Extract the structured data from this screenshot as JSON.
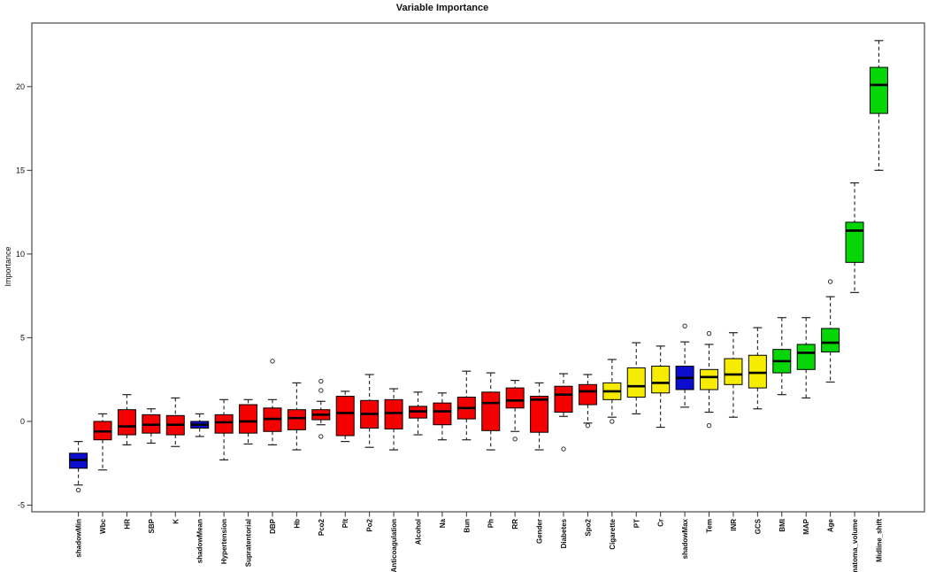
{
  "chart_data": {
    "type": "boxplot",
    "title": "Variable Importance",
    "ylabel": "Importance",
    "xlabel": "",
    "ylim": [
      -5.4,
      23.8
    ],
    "yticks": [
      -5,
      0,
      5,
      10,
      15,
      20
    ],
    "grid": false,
    "legend_position": "none",
    "x_tick_label_rotation": 90,
    "status_colors": {
      "confirmed": "#06d506",
      "tentative": "#f6ec00",
      "rejected": "#f40000",
      "shadow": "#0d0dcf"
    },
    "series": [
      {
        "label": "shadowMin",
        "status": "shadow",
        "whisker_low": -3.8,
        "q1": -2.8,
        "median": -2.3,
        "q3": -1.9,
        "whisker_high": -1.2,
        "outliers": [
          -4.1
        ]
      },
      {
        "label": "Wbc",
        "status": "rejected",
        "whisker_low": -2.9,
        "q1": -1.1,
        "median": -0.6,
        "q3": 0.0,
        "whisker_high": 0.45,
        "outliers": []
      },
      {
        "label": "HR",
        "status": "rejected",
        "whisker_low": -1.4,
        "q1": -0.8,
        "median": -0.3,
        "q3": 0.7,
        "whisker_high": 1.6,
        "outliers": []
      },
      {
        "label": "SBP",
        "status": "rejected",
        "whisker_low": -1.3,
        "q1": -0.7,
        "median": -0.2,
        "q3": 0.4,
        "whisker_high": 0.75,
        "outliers": []
      },
      {
        "label": "K",
        "status": "rejected",
        "whisker_low": -1.5,
        "q1": -0.8,
        "median": -0.2,
        "q3": 0.35,
        "whisker_high": 1.4,
        "outliers": []
      },
      {
        "label": "shadowMean",
        "status": "shadow",
        "whisker_low": -0.9,
        "q1": -0.4,
        "median": -0.2,
        "q3": 0.0,
        "whisker_high": 0.45,
        "outliers": []
      },
      {
        "label": "Hypertension",
        "status": "rejected",
        "whisker_low": -2.3,
        "q1": -0.7,
        "median": -0.05,
        "q3": 0.4,
        "whisker_high": 1.3,
        "outliers": []
      },
      {
        "label": "Supratentorial",
        "status": "rejected",
        "whisker_low": -1.35,
        "q1": -0.7,
        "median": 0.0,
        "q3": 1.0,
        "whisker_high": 1.3,
        "outliers": []
      },
      {
        "label": "DBP",
        "status": "rejected",
        "whisker_low": -1.4,
        "q1": -0.6,
        "median": 0.15,
        "q3": 0.8,
        "whisker_high": 1.3,
        "outliers": [
          3.6
        ]
      },
      {
        "label": "Hb",
        "status": "rejected",
        "whisker_low": -1.7,
        "q1": -0.5,
        "median": 0.2,
        "q3": 0.7,
        "whisker_high": 2.3,
        "outliers": []
      },
      {
        "label": "Pco2",
        "status": "rejected",
        "whisker_low": -0.2,
        "q1": 0.1,
        "median": 0.4,
        "q3": 0.7,
        "whisker_high": 1.2,
        "outliers": [
          2.4,
          1.85,
          -0.9
        ]
      },
      {
        "label": "Plt",
        "status": "rejected",
        "whisker_low": -1.2,
        "q1": -0.85,
        "median": 0.5,
        "q3": 1.5,
        "whisker_high": 1.8,
        "outliers": []
      },
      {
        "label": "Po2",
        "status": "rejected",
        "whisker_low": -1.55,
        "q1": -0.4,
        "median": 0.45,
        "q3": 1.25,
        "whisker_high": 2.8,
        "outliers": []
      },
      {
        "label": "Anticoagulation",
        "status": "rejected",
        "whisker_low": -1.7,
        "q1": -0.45,
        "median": 0.5,
        "q3": 1.3,
        "whisker_high": 1.95,
        "outliers": []
      },
      {
        "label": "Alcohol",
        "status": "rejected",
        "whisker_low": -0.8,
        "q1": 0.2,
        "median": 0.6,
        "q3": 0.9,
        "whisker_high": 1.75,
        "outliers": []
      },
      {
        "label": "Na",
        "status": "rejected",
        "whisker_low": -1.1,
        "q1": -0.2,
        "median": 0.6,
        "q3": 1.1,
        "whisker_high": 1.7,
        "outliers": []
      },
      {
        "label": "Bun",
        "status": "rejected",
        "whisker_low": -1.1,
        "q1": 0.15,
        "median": 0.8,
        "q3": 1.45,
        "whisker_high": 3.0,
        "outliers": []
      },
      {
        "label": "Ph",
        "status": "rejected",
        "whisker_low": -1.7,
        "q1": -0.55,
        "median": 1.1,
        "q3": 1.75,
        "whisker_high": 2.9,
        "outliers": []
      },
      {
        "label": "RR",
        "status": "rejected",
        "whisker_low": -0.6,
        "q1": 0.8,
        "median": 1.25,
        "q3": 2.0,
        "whisker_high": 2.45,
        "outliers": [
          -1.05
        ]
      },
      {
        "label": "Gender",
        "status": "rejected",
        "whisker_low": -1.7,
        "q1": -0.65,
        "median": 1.3,
        "q3": 1.5,
        "whisker_high": 2.3,
        "outliers": []
      },
      {
        "label": "Diabetes",
        "status": "rejected",
        "whisker_low": 0.3,
        "q1": 0.55,
        "median": 1.6,
        "q3": 2.1,
        "whisker_high": 2.85,
        "outliers": [
          -1.65
        ]
      },
      {
        "label": "Spo2",
        "status": "rejected",
        "whisker_low": -0.1,
        "q1": 1.0,
        "median": 1.8,
        "q3": 2.2,
        "whisker_high": 2.8,
        "outliers": [
          -0.25
        ]
      },
      {
        "label": "Cigarette",
        "status": "tentative",
        "whisker_low": 0.25,
        "q1": 1.3,
        "median": 1.8,
        "q3": 2.3,
        "whisker_high": 3.7,
        "outliers": [
          0.0
        ]
      },
      {
        "label": "PT",
        "status": "tentative",
        "whisker_low": 0.45,
        "q1": 1.45,
        "median": 2.1,
        "q3": 3.2,
        "whisker_high": 4.7,
        "outliers": []
      },
      {
        "label": "Cr",
        "status": "tentative",
        "whisker_low": -0.35,
        "q1": 1.7,
        "median": 2.3,
        "q3": 3.3,
        "whisker_high": 4.5,
        "outliers": []
      },
      {
        "label": "shadowMax",
        "status": "shadow",
        "whisker_low": 0.85,
        "q1": 1.9,
        "median": 2.6,
        "q3": 3.3,
        "whisker_high": 4.75,
        "outliers": [
          5.7
        ]
      },
      {
        "label": "Tem",
        "status": "tentative",
        "whisker_low": 0.55,
        "q1": 1.9,
        "median": 2.65,
        "q3": 3.1,
        "whisker_high": 4.6,
        "outliers": [
          5.25,
          -0.25
        ]
      },
      {
        "label": "INR",
        "status": "tentative",
        "whisker_low": 0.25,
        "q1": 2.2,
        "median": 2.8,
        "q3": 3.75,
        "whisker_high": 5.3,
        "outliers": []
      },
      {
        "label": "GCS",
        "status": "tentative",
        "whisker_low": 0.75,
        "q1": 2.0,
        "median": 2.9,
        "q3": 3.95,
        "whisker_high": 5.6,
        "outliers": []
      },
      {
        "label": "BMI",
        "status": "confirmed",
        "whisker_low": 1.6,
        "q1": 2.9,
        "median": 3.6,
        "q3": 4.3,
        "whisker_high": 6.2,
        "outliers": []
      },
      {
        "label": "MAP",
        "status": "confirmed",
        "whisker_low": 1.4,
        "q1": 3.1,
        "median": 4.1,
        "q3": 4.6,
        "whisker_high": 6.2,
        "outliers": []
      },
      {
        "label": "Age",
        "status": "confirmed",
        "whisker_low": 2.35,
        "q1": 4.15,
        "median": 4.7,
        "q3": 5.55,
        "whisker_high": 7.45,
        "outliers": [
          8.35
        ]
      },
      {
        "label": "Hematoma_volume",
        "status": "confirmed",
        "whisker_low": 7.7,
        "q1": 9.5,
        "median": 11.4,
        "q3": 11.9,
        "whisker_high": 14.25,
        "outliers": []
      },
      {
        "label": "Midline_shift",
        "status": "confirmed",
        "whisker_low": 15.0,
        "q1": 18.4,
        "median": 20.1,
        "q3": 21.15,
        "whisker_high": 22.75,
        "outliers": []
      }
    ]
  }
}
